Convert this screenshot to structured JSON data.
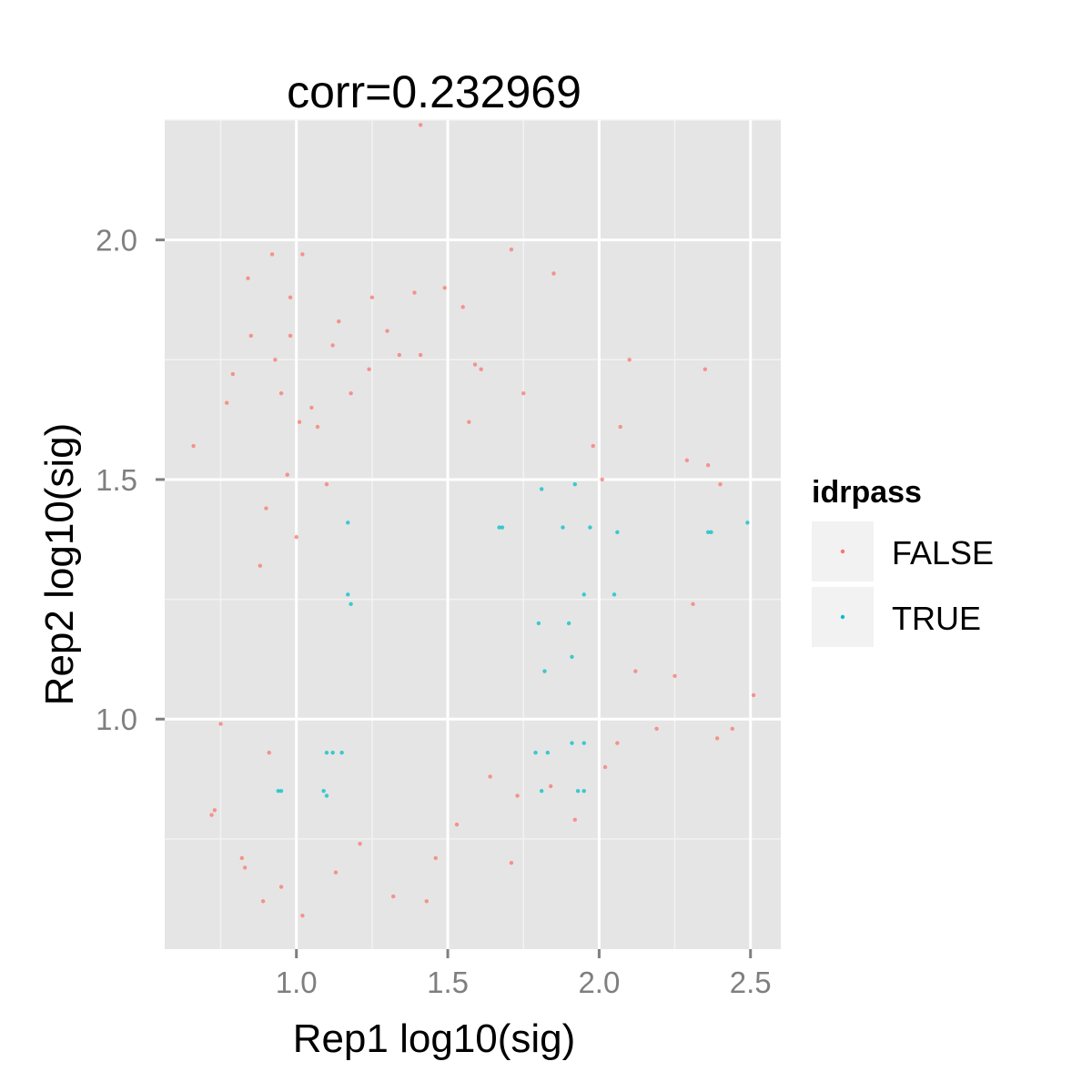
{
  "chart_data": {
    "type": "scatter",
    "title": "corr=0.232969",
    "xlabel": "Rep1 log10(sig)",
    "ylabel": "Rep2 log10(sig)",
    "xlim": [
      0.565,
      2.6
    ],
    "ylim": [
      0.52,
      2.25
    ],
    "x_ticks": [
      1.0,
      1.5,
      2.0,
      2.5
    ],
    "x_tick_labels": [
      "1.0",
      "1.5",
      "2.0",
      "2.5"
    ],
    "y_ticks": [
      1.0,
      1.5,
      2.0
    ],
    "y_tick_labels": [
      "1.0",
      "1.5",
      "2.0"
    ],
    "grid": true,
    "legend": {
      "title": "idrpass",
      "placement": "right",
      "entries": [
        {
          "label": "FALSE",
          "color": "#F8766D"
        },
        {
          "label": "TRUE",
          "color": "#00BFC4"
        }
      ]
    },
    "colors": {
      "FALSE": "#F8766D",
      "TRUE": "#00BFC4",
      "panel": "#E5E5E5",
      "grid": "#FFFFFF"
    },
    "series": [
      {
        "name": "FALSE",
        "points": [
          [
            0.66,
            1.57
          ],
          [
            0.72,
            0.8
          ],
          [
            0.75,
            0.99
          ],
          [
            0.77,
            1.66
          ],
          [
            0.79,
            1.72
          ],
          [
            0.82,
            0.71
          ],
          [
            0.84,
            1.92
          ],
          [
            0.85,
            1.8
          ],
          [
            0.88,
            1.32
          ],
          [
            0.9,
            1.44
          ],
          [
            0.91,
            0.93
          ],
          [
            0.92,
            1.97
          ],
          [
            0.93,
            1.75
          ],
          [
            0.95,
            1.68
          ],
          [
            0.97,
            1.51
          ],
          [
            0.98,
            1.8
          ],
          [
            0.98,
            1.88
          ],
          [
            1.0,
            1.38
          ],
          [
            1.01,
            1.62
          ],
          [
            1.02,
            1.97
          ],
          [
            1.05,
            1.65
          ],
          [
            1.07,
            1.61
          ],
          [
            1.1,
            1.49
          ],
          [
            1.12,
            1.78
          ],
          [
            1.14,
            1.83
          ],
          [
            1.18,
            1.68
          ],
          [
            1.24,
            1.73
          ],
          [
            1.25,
            1.88
          ],
          [
            1.3,
            1.81
          ],
          [
            1.34,
            1.76
          ],
          [
            1.39,
            1.89
          ],
          [
            1.41,
            2.24
          ],
          [
            1.41,
            1.76
          ],
          [
            1.49,
            1.9
          ],
          [
            1.55,
            1.86
          ],
          [
            1.57,
            1.62
          ],
          [
            1.59,
            1.74
          ],
          [
            1.61,
            1.73
          ],
          [
            1.71,
            1.98
          ],
          [
            1.75,
            1.68
          ],
          [
            1.85,
            1.93
          ],
          [
            1.98,
            1.57
          ],
          [
            2.01,
            1.5
          ],
          [
            2.07,
            1.61
          ],
          [
            2.1,
            1.75
          ],
          [
            2.29,
            1.54
          ],
          [
            2.35,
            1.73
          ],
          [
            2.36,
            1.53
          ],
          [
            2.4,
            1.49
          ],
          [
            2.51,
            1.05
          ],
          [
            2.44,
            0.98
          ],
          [
            2.39,
            0.96
          ],
          [
            2.31,
            1.24
          ],
          [
            2.19,
            0.98
          ],
          [
            2.25,
            1.09
          ],
          [
            2.12,
            1.1
          ],
          [
            2.06,
            0.95
          ],
          [
            2.02,
            0.9
          ],
          [
            1.92,
            0.79
          ],
          [
            1.84,
            0.86
          ],
          [
            1.71,
            0.7
          ],
          [
            1.73,
            0.84
          ],
          [
            1.64,
            0.88
          ],
          [
            1.53,
            0.78
          ],
          [
            1.46,
            0.71
          ],
          [
            1.43,
            0.62
          ],
          [
            1.32,
            0.63
          ],
          [
            1.21,
            0.74
          ],
          [
            1.13,
            0.68
          ],
          [
            1.02,
            0.59
          ],
          [
            0.95,
            0.65
          ],
          [
            0.89,
            0.62
          ],
          [
            0.83,
            0.69
          ],
          [
            0.73,
            0.81
          ]
        ]
      },
      {
        "name": "TRUE",
        "points": [
          [
            0.94,
            0.85
          ],
          [
            0.95,
            0.85
          ],
          [
            1.09,
            0.85
          ],
          [
            1.1,
            0.84
          ],
          [
            1.1,
            0.93
          ],
          [
            1.12,
            0.93
          ],
          [
            1.15,
            0.93
          ],
          [
            1.17,
            1.41
          ],
          [
            1.17,
            1.26
          ],
          [
            1.18,
            1.24
          ],
          [
            1.67,
            1.4
          ],
          [
            1.68,
            1.4
          ],
          [
            1.79,
            0.93
          ],
          [
            1.8,
            1.2
          ],
          [
            1.81,
            1.48
          ],
          [
            1.81,
            0.85
          ],
          [
            1.82,
            1.1
          ],
          [
            1.83,
            0.93
          ],
          [
            1.88,
            1.4
          ],
          [
            1.9,
            1.2
          ],
          [
            1.91,
            1.13
          ],
          [
            1.91,
            0.95
          ],
          [
            1.92,
            1.49
          ],
          [
            1.93,
            0.85
          ],
          [
            1.95,
            0.85
          ],
          [
            1.95,
            0.95
          ],
          [
            1.95,
            1.26
          ],
          [
            1.97,
            1.4
          ],
          [
            2.05,
            1.26
          ],
          [
            2.06,
            1.39
          ],
          [
            2.36,
            1.39
          ],
          [
            2.37,
            1.39
          ],
          [
            2.49,
            1.41
          ]
        ]
      }
    ]
  }
}
